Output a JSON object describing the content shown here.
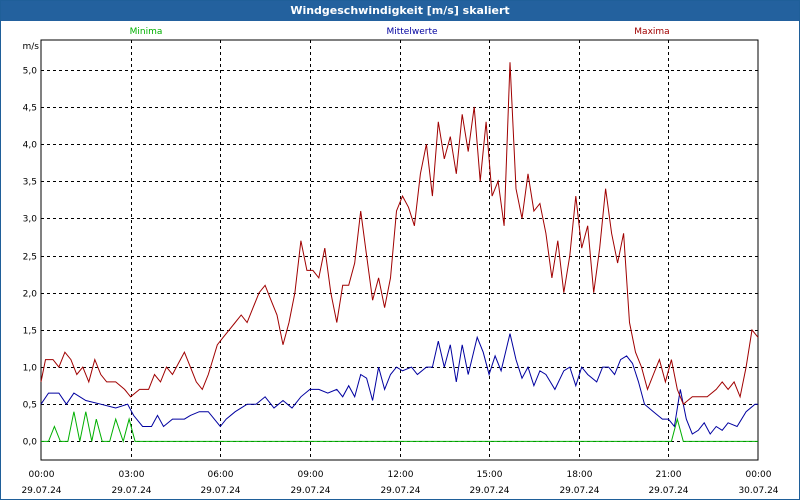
{
  "window": {
    "title": "Windgeschwindigkeit [m/s] skaliert"
  },
  "colors": {
    "min": "#00b000",
    "mean": "#0000a0",
    "max": "#a00000",
    "grid": "#000000"
  },
  "chart_data": {
    "type": "line",
    "title": "Windgeschwindigkeit [m/s] skaliert",
    "ylabel": "m/s",
    "xlabel": "",
    "ylim": [
      -0.25,
      5.4
    ],
    "xlim": [
      0,
      24
    ],
    "yticks": [
      "5,0",
      "4,5",
      "4,0",
      "3,5",
      "3,0",
      "2,5",
      "2,0",
      "1,5",
      "1,0",
      "0,5",
      "0,0"
    ],
    "ytick_values": [
      5.0,
      4.5,
      4.0,
      3.5,
      3.0,
      2.5,
      2.0,
      1.5,
      1.0,
      0.5,
      0.0
    ],
    "xticks": [
      {
        "time": "00:00",
        "date": "29.07.24"
      },
      {
        "time": "03:00",
        "date": "29.07.24"
      },
      {
        "time": "06:00",
        "date": "29.07.24"
      },
      {
        "time": "09:00",
        "date": "29.07.24"
      },
      {
        "time": "12:00",
        "date": "29.07.24"
      },
      {
        "time": "15:00",
        "date": "29.07.24"
      },
      {
        "time": "18:00",
        "date": "29.07.24"
      },
      {
        "time": "21:00",
        "date": "29.07.24"
      },
      {
        "time": "00:00",
        "date": "30.07.24"
      }
    ],
    "xtick_hours": [
      0,
      3,
      6,
      9,
      12,
      15,
      18,
      21,
      24
    ],
    "grid": true,
    "legend_position": "top",
    "series": [
      {
        "name": "Minima",
        "key": "min",
        "points": [
          [
            0,
            0
          ],
          [
            0.25,
            0
          ],
          [
            0.45,
            0.2
          ],
          [
            0.65,
            0
          ],
          [
            0.9,
            0
          ],
          [
            1.1,
            0.4
          ],
          [
            1.3,
            0
          ],
          [
            1.5,
            0.4
          ],
          [
            1.7,
            0
          ],
          [
            1.85,
            0.3
          ],
          [
            2.05,
            0
          ],
          [
            2.3,
            0
          ],
          [
            2.5,
            0.3
          ],
          [
            2.75,
            0
          ],
          [
            2.95,
            0.3
          ],
          [
            3.15,
            0
          ],
          [
            21.1,
            0
          ],
          [
            21.3,
            0.3
          ],
          [
            21.5,
            0
          ],
          [
            24,
            0
          ]
        ]
      },
      {
        "name": "Mittelwerte",
        "key": "mean",
        "points": [
          [
            0,
            0.5
          ],
          [
            0.25,
            0.65
          ],
          [
            0.6,
            0.65
          ],
          [
            0.85,
            0.5
          ],
          [
            1.1,
            0.65
          ],
          [
            1.5,
            0.55
          ],
          [
            2.0,
            0.5
          ],
          [
            2.5,
            0.45
          ],
          [
            2.9,
            0.5
          ],
          [
            3.1,
            0.35
          ],
          [
            3.4,
            0.2
          ],
          [
            3.7,
            0.2
          ],
          [
            3.9,
            0.35
          ],
          [
            4.1,
            0.2
          ],
          [
            4.4,
            0.3
          ],
          [
            4.8,
            0.3
          ],
          [
            5.0,
            0.35
          ],
          [
            5.3,
            0.4
          ],
          [
            5.6,
            0.4
          ],
          [
            6.0,
            0.2
          ],
          [
            6.2,
            0.3
          ],
          [
            6.5,
            0.4
          ],
          [
            6.9,
            0.5
          ],
          [
            7.2,
            0.5
          ],
          [
            7.5,
            0.6
          ],
          [
            7.8,
            0.45
          ],
          [
            8.1,
            0.55
          ],
          [
            8.4,
            0.45
          ],
          [
            8.7,
            0.6
          ],
          [
            9.0,
            0.7
          ],
          [
            9.3,
            0.7
          ],
          [
            9.6,
            0.65
          ],
          [
            9.9,
            0.7
          ],
          [
            10.1,
            0.6
          ],
          [
            10.3,
            0.75
          ],
          [
            10.5,
            0.6
          ],
          [
            10.7,
            0.9
          ],
          [
            10.9,
            0.85
          ],
          [
            11.1,
            0.55
          ],
          [
            11.3,
            1.0
          ],
          [
            11.5,
            0.7
          ],
          [
            11.7,
            0.9
          ],
          [
            11.9,
            1.0
          ],
          [
            12.1,
            0.95
          ],
          [
            12.4,
            1.0
          ],
          [
            12.6,
            0.9
          ],
          [
            12.9,
            1.0
          ],
          [
            13.1,
            1.0
          ],
          [
            13.3,
            1.35
          ],
          [
            13.5,
            1.0
          ],
          [
            13.7,
            1.3
          ],
          [
            13.9,
            0.8
          ],
          [
            14.1,
            1.3
          ],
          [
            14.3,
            0.9
          ],
          [
            14.6,
            1.4
          ],
          [
            14.8,
            1.2
          ],
          [
            15.0,
            0.9
          ],
          [
            15.2,
            1.15
          ],
          [
            15.4,
            0.95
          ],
          [
            15.7,
            1.45
          ],
          [
            15.9,
            1.1
          ],
          [
            16.1,
            0.85
          ],
          [
            16.3,
            1.0
          ],
          [
            16.5,
            0.75
          ],
          [
            16.7,
            0.95
          ],
          [
            16.9,
            0.9
          ],
          [
            17.2,
            0.7
          ],
          [
            17.5,
            0.95
          ],
          [
            17.7,
            1.0
          ],
          [
            17.9,
            0.75
          ],
          [
            18.1,
            1.0
          ],
          [
            18.3,
            0.9
          ],
          [
            18.6,
            0.8
          ],
          [
            18.8,
            1.0
          ],
          [
            19.0,
            1.0
          ],
          [
            19.2,
            0.9
          ],
          [
            19.4,
            1.1
          ],
          [
            19.6,
            1.15
          ],
          [
            19.8,
            1.05
          ],
          [
            20.0,
            0.8
          ],
          [
            20.2,
            0.5
          ],
          [
            20.5,
            0.4
          ],
          [
            20.8,
            0.3
          ],
          [
            21.0,
            0.3
          ],
          [
            21.2,
            0.2
          ],
          [
            21.4,
            0.7
          ],
          [
            21.6,
            0.3
          ],
          [
            21.8,
            0.1
          ],
          [
            22.0,
            0.15
          ],
          [
            22.2,
            0.25
          ],
          [
            22.4,
            0.1
          ],
          [
            22.6,
            0.2
          ],
          [
            22.8,
            0.15
          ],
          [
            23.0,
            0.25
          ],
          [
            23.3,
            0.2
          ],
          [
            23.6,
            0.4
          ],
          [
            23.9,
            0.5
          ],
          [
            24,
            0.5
          ]
        ]
      },
      {
        "name": "Maxima",
        "key": "max",
        "points": [
          [
            0,
            0.8
          ],
          [
            0.15,
            1.1
          ],
          [
            0.4,
            1.1
          ],
          [
            0.6,
            1.0
          ],
          [
            0.8,
            1.2
          ],
          [
            1.0,
            1.1
          ],
          [
            1.2,
            0.9
          ],
          [
            1.4,
            1.0
          ],
          [
            1.6,
            0.8
          ],
          [
            1.8,
            1.1
          ],
          [
            2.0,
            0.9
          ],
          [
            2.2,
            0.8
          ],
          [
            2.5,
            0.8
          ],
          [
            2.8,
            0.7
          ],
          [
            3.0,
            0.6
          ],
          [
            3.3,
            0.7
          ],
          [
            3.6,
            0.7
          ],
          [
            3.8,
            0.9
          ],
          [
            4.0,
            0.8
          ],
          [
            4.2,
            1.0
          ],
          [
            4.4,
            0.9
          ],
          [
            4.6,
            1.05
          ],
          [
            4.8,
            1.2
          ],
          [
            5.0,
            1.0
          ],
          [
            5.2,
            0.8
          ],
          [
            5.4,
            0.7
          ],
          [
            5.6,
            0.9
          ],
          [
            5.9,
            1.3
          ],
          [
            6.1,
            1.4
          ],
          [
            6.3,
            1.5
          ],
          [
            6.5,
            1.6
          ],
          [
            6.7,
            1.7
          ],
          [
            6.9,
            1.6
          ],
          [
            7.1,
            1.8
          ],
          [
            7.3,
            2.0
          ],
          [
            7.5,
            2.1
          ],
          [
            7.7,
            1.9
          ],
          [
            7.9,
            1.7
          ],
          [
            8.1,
            1.3
          ],
          [
            8.3,
            1.6
          ],
          [
            8.5,
            2.0
          ],
          [
            8.7,
            2.7
          ],
          [
            8.9,
            2.3
          ],
          [
            9.1,
            2.3
          ],
          [
            9.3,
            2.2
          ],
          [
            9.5,
            2.6
          ],
          [
            9.7,
            2.0
          ],
          [
            9.9,
            1.6
          ],
          [
            10.1,
            2.1
          ],
          [
            10.3,
            2.1
          ],
          [
            10.5,
            2.4
          ],
          [
            10.7,
            3.1
          ],
          [
            10.9,
            2.5
          ],
          [
            11.1,
            1.9
          ],
          [
            11.3,
            2.2
          ],
          [
            11.5,
            1.8
          ],
          [
            11.7,
            2.2
          ],
          [
            11.9,
            3.1
          ],
          [
            12.1,
            3.3
          ],
          [
            12.3,
            3.15
          ],
          [
            12.5,
            2.9
          ],
          [
            12.7,
            3.6
          ],
          [
            12.9,
            4.0
          ],
          [
            13.1,
            3.3
          ],
          [
            13.3,
            4.3
          ],
          [
            13.5,
            3.8
          ],
          [
            13.7,
            4.1
          ],
          [
            13.9,
            3.6
          ],
          [
            14.1,
            4.4
          ],
          [
            14.3,
            3.9
          ],
          [
            14.5,
            4.5
          ],
          [
            14.7,
            3.5
          ],
          [
            14.9,
            4.3
          ],
          [
            15.1,
            3.3
          ],
          [
            15.3,
            3.5
          ],
          [
            15.5,
            2.9
          ],
          [
            15.7,
            5.1
          ],
          [
            15.9,
            3.4
          ],
          [
            16.1,
            3.0
          ],
          [
            16.3,
            3.6
          ],
          [
            16.5,
            3.1
          ],
          [
            16.7,
            3.2
          ],
          [
            16.9,
            2.8
          ],
          [
            17.1,
            2.2
          ],
          [
            17.3,
            2.7
          ],
          [
            17.5,
            2.0
          ],
          [
            17.7,
            2.5
          ],
          [
            17.9,
            3.3
          ],
          [
            18.1,
            2.6
          ],
          [
            18.3,
            2.9
          ],
          [
            18.5,
            2.0
          ],
          [
            18.7,
            2.6
          ],
          [
            18.9,
            3.4
          ],
          [
            19.1,
            2.8
          ],
          [
            19.3,
            2.4
          ],
          [
            19.5,
            2.8
          ],
          [
            19.7,
            1.6
          ],
          [
            19.9,
            1.2
          ],
          [
            20.1,
            1.0
          ],
          [
            20.3,
            0.7
          ],
          [
            20.5,
            0.9
          ],
          [
            20.7,
            1.1
          ],
          [
            20.9,
            0.8
          ],
          [
            21.1,
            1.1
          ],
          [
            21.3,
            0.7
          ],
          [
            21.5,
            0.5
          ],
          [
            21.8,
            0.6
          ],
          [
            22.1,
            0.6
          ],
          [
            22.3,
            0.6
          ],
          [
            22.6,
            0.7
          ],
          [
            22.8,
            0.8
          ],
          [
            23.0,
            0.7
          ],
          [
            23.2,
            0.8
          ],
          [
            23.4,
            0.6
          ],
          [
            23.6,
            1.0
          ],
          [
            23.8,
            1.5
          ],
          [
            24,
            1.4
          ]
        ]
      }
    ]
  }
}
